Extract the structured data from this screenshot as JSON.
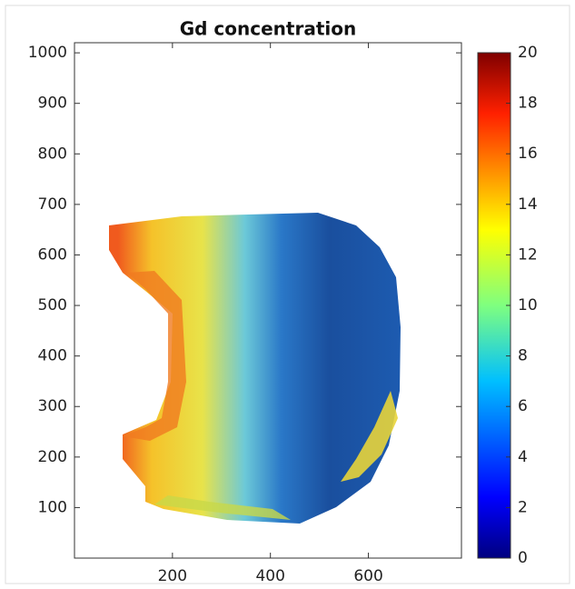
{
  "chart_data": {
    "type": "heatmap",
    "title": "Gd concentration",
    "xlim": [
      0,
      790
    ],
    "xticks": [
      200,
      400,
      600
    ],
    "ylim": [
      0,
      1020
    ],
    "yticks": [
      100,
      200,
      300,
      400,
      500,
      600,
      700,
      800,
      900,
      1000
    ],
    "clim": [
      0,
      20
    ],
    "cticks": [
      0,
      2,
      4,
      6,
      8,
      10,
      12,
      14,
      16,
      18,
      20
    ]
  }
}
